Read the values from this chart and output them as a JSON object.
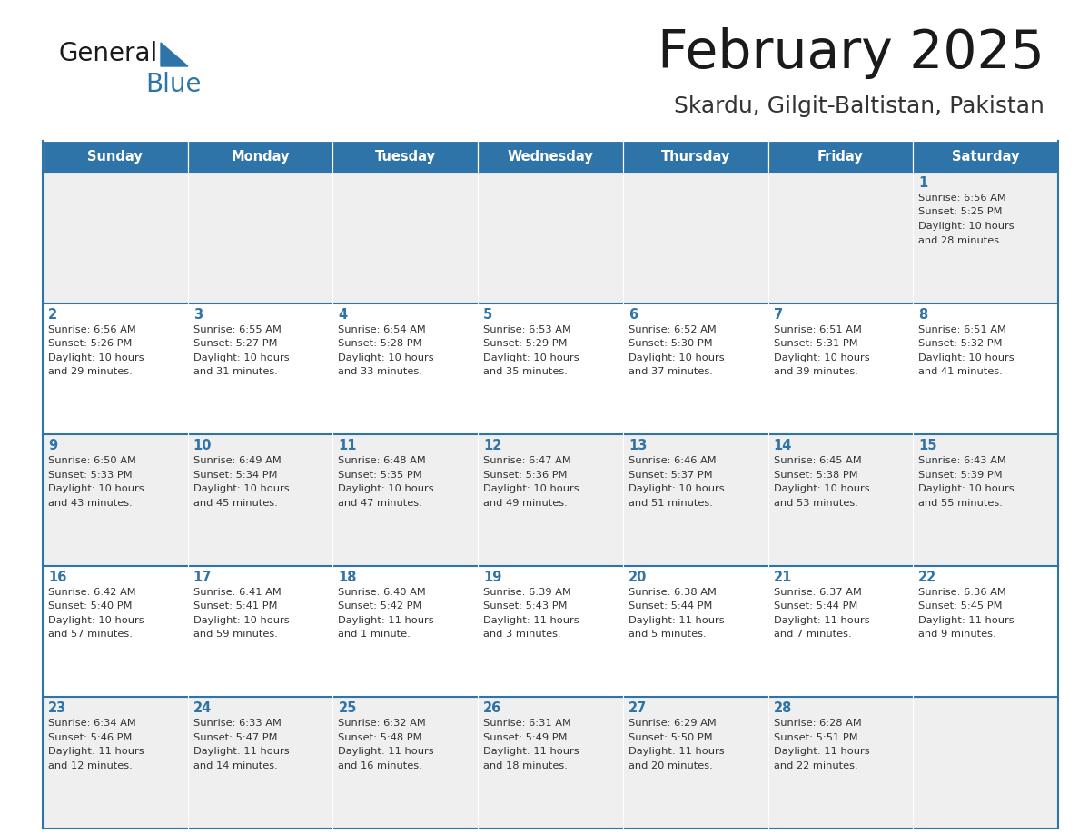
{
  "title": "February 2025",
  "subtitle": "Skardu, Gilgit-Baltistan, Pakistan",
  "days_of_week": [
    "Sunday",
    "Monday",
    "Tuesday",
    "Wednesday",
    "Thursday",
    "Friday",
    "Saturday"
  ],
  "header_bg": "#2E74A8",
  "header_text": "#FFFFFF",
  "cell_bg_light": "#EFEFEF",
  "cell_bg_white": "#FFFFFF",
  "cell_border": "#2E74A8",
  "day_num_color": "#2E74A8",
  "info_text_color": "#333333",
  "logo_general_color": "#1a1a1a",
  "logo_blue_color": "#2E74A8",
  "title_color": "#1a1a1a",
  "subtitle_color": "#333333",
  "calendar_data": [
    [
      null,
      null,
      null,
      null,
      null,
      null,
      {
        "day": "1",
        "sunrise": "6:56 AM",
        "sunset": "5:25 PM",
        "daylight": "10 hours",
        "daylight2": "and 28 minutes."
      }
    ],
    [
      {
        "day": "2",
        "sunrise": "6:56 AM",
        "sunset": "5:26 PM",
        "daylight": "10 hours",
        "daylight2": "and 29 minutes."
      },
      {
        "day": "3",
        "sunrise": "6:55 AM",
        "sunset": "5:27 PM",
        "daylight": "10 hours",
        "daylight2": "and 31 minutes."
      },
      {
        "day": "4",
        "sunrise": "6:54 AM",
        "sunset": "5:28 PM",
        "daylight": "10 hours",
        "daylight2": "and 33 minutes."
      },
      {
        "day": "5",
        "sunrise": "6:53 AM",
        "sunset": "5:29 PM",
        "daylight": "10 hours",
        "daylight2": "and 35 minutes."
      },
      {
        "day": "6",
        "sunrise": "6:52 AM",
        "sunset": "5:30 PM",
        "daylight": "10 hours",
        "daylight2": "and 37 minutes."
      },
      {
        "day": "7",
        "sunrise": "6:51 AM",
        "sunset": "5:31 PM",
        "daylight": "10 hours",
        "daylight2": "and 39 minutes."
      },
      {
        "day": "8",
        "sunrise": "6:51 AM",
        "sunset": "5:32 PM",
        "daylight": "10 hours",
        "daylight2": "and 41 minutes."
      }
    ],
    [
      {
        "day": "9",
        "sunrise": "6:50 AM",
        "sunset": "5:33 PM",
        "daylight": "10 hours",
        "daylight2": "and 43 minutes."
      },
      {
        "day": "10",
        "sunrise": "6:49 AM",
        "sunset": "5:34 PM",
        "daylight": "10 hours",
        "daylight2": "and 45 minutes."
      },
      {
        "day": "11",
        "sunrise": "6:48 AM",
        "sunset": "5:35 PM",
        "daylight": "10 hours",
        "daylight2": "and 47 minutes."
      },
      {
        "day": "12",
        "sunrise": "6:47 AM",
        "sunset": "5:36 PM",
        "daylight": "10 hours",
        "daylight2": "and 49 minutes."
      },
      {
        "day": "13",
        "sunrise": "6:46 AM",
        "sunset": "5:37 PM",
        "daylight": "10 hours",
        "daylight2": "and 51 minutes."
      },
      {
        "day": "14",
        "sunrise": "6:45 AM",
        "sunset": "5:38 PM",
        "daylight": "10 hours",
        "daylight2": "and 53 minutes."
      },
      {
        "day": "15",
        "sunrise": "6:43 AM",
        "sunset": "5:39 PM",
        "daylight": "10 hours",
        "daylight2": "and 55 minutes."
      }
    ],
    [
      {
        "day": "16",
        "sunrise": "6:42 AM",
        "sunset": "5:40 PM",
        "daylight": "10 hours",
        "daylight2": "and 57 minutes."
      },
      {
        "day": "17",
        "sunrise": "6:41 AM",
        "sunset": "5:41 PM",
        "daylight": "10 hours",
        "daylight2": "and 59 minutes."
      },
      {
        "day": "18",
        "sunrise": "6:40 AM",
        "sunset": "5:42 PM",
        "daylight": "11 hours",
        "daylight2": "and 1 minute."
      },
      {
        "day": "19",
        "sunrise": "6:39 AM",
        "sunset": "5:43 PM",
        "daylight": "11 hours",
        "daylight2": "and 3 minutes."
      },
      {
        "day": "20",
        "sunrise": "6:38 AM",
        "sunset": "5:44 PM",
        "daylight": "11 hours",
        "daylight2": "and 5 minutes."
      },
      {
        "day": "21",
        "sunrise": "6:37 AM",
        "sunset": "5:44 PM",
        "daylight": "11 hours",
        "daylight2": "and 7 minutes."
      },
      {
        "day": "22",
        "sunrise": "6:36 AM",
        "sunset": "5:45 PM",
        "daylight": "11 hours",
        "daylight2": "and 9 minutes."
      }
    ],
    [
      {
        "day": "23",
        "sunrise": "6:34 AM",
        "sunset": "5:46 PM",
        "daylight": "11 hours",
        "daylight2": "and 12 minutes."
      },
      {
        "day": "24",
        "sunrise": "6:33 AM",
        "sunset": "5:47 PM",
        "daylight": "11 hours",
        "daylight2": "and 14 minutes."
      },
      {
        "day": "25",
        "sunrise": "6:32 AM",
        "sunset": "5:48 PM",
        "daylight": "11 hours",
        "daylight2": "and 16 minutes."
      },
      {
        "day": "26",
        "sunrise": "6:31 AM",
        "sunset": "5:49 PM",
        "daylight": "11 hours",
        "daylight2": "and 18 minutes."
      },
      {
        "day": "27",
        "sunrise": "6:29 AM",
        "sunset": "5:50 PM",
        "daylight": "11 hours",
        "daylight2": "and 20 minutes."
      },
      {
        "day": "28",
        "sunrise": "6:28 AM",
        "sunset": "5:51 PM",
        "daylight": "11 hours",
        "daylight2": "and 22 minutes."
      },
      null
    ]
  ]
}
